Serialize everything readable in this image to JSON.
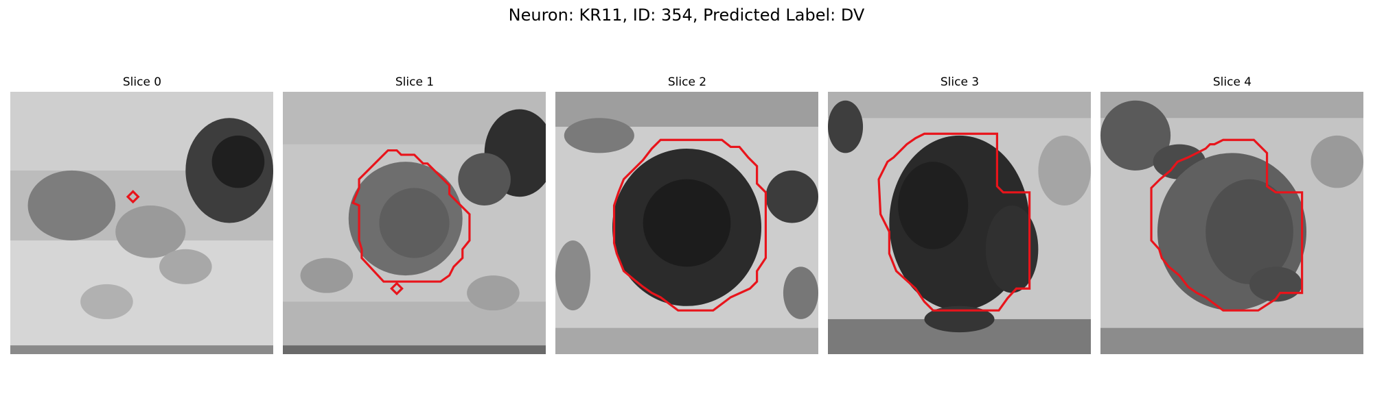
{
  "figure": {
    "title": "Neuron: KR11, ID: 354, Predicted Label: DV"
  },
  "panels": [
    {
      "title": "Slice 0",
      "roi": "marker"
    },
    {
      "title": "Slice 1",
      "roi": "contour+marker"
    },
    {
      "title": "Slice 2",
      "roi": "contour"
    },
    {
      "title": "Slice 3",
      "roi": "contour"
    },
    {
      "title": "Slice 4",
      "roi": "contour"
    }
  ],
  "colors": {
    "contour": "#e8141b",
    "image_colormap": "grayscale"
  }
}
